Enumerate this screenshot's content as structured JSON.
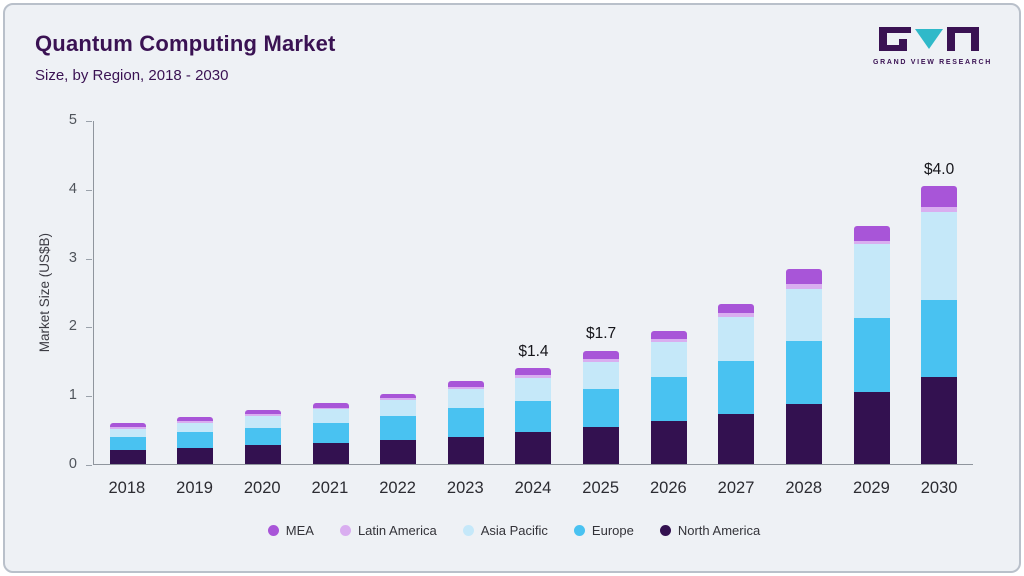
{
  "header": {
    "title": "Quantum Computing Market",
    "subtitle": "Size, by Region, 2018 - 2030",
    "logo_text": "GRAND VIEW RESEARCH"
  },
  "colors": {
    "title": "#3a1253",
    "panel_background": "#eef1f5",
    "panel_border": "#b9c0ca",
    "axis": "#8f959d",
    "logo_teal": "#2fb9c9",
    "logo_purple": "#3a1253"
  },
  "chart_data": {
    "type": "bar",
    "stacked": true,
    "title": "Quantum Computing Market Size, by Region, 2018 - 2030",
    "xlabel": "",
    "ylabel": "Market Size (US$B)",
    "ylim": [
      0,
      5
    ],
    "yticks": [
      0,
      1,
      2,
      3,
      4,
      5
    ],
    "grid": false,
    "legend_position": "bottom",
    "categories": [
      "2018",
      "2019",
      "2020",
      "2021",
      "2022",
      "2023",
      "2024",
      "2025",
      "2026",
      "2027",
      "2028",
      "2029",
      "2030"
    ],
    "series": [
      {
        "name": "North America",
        "color": "#331150",
        "values": [
          0.2,
          0.24,
          0.27,
          0.3,
          0.35,
          0.4,
          0.46,
          0.54,
          0.63,
          0.73,
          0.87,
          1.05,
          1.27
        ]
      },
      {
        "name": "Europe",
        "color": "#49c2f1",
        "values": [
          0.19,
          0.22,
          0.26,
          0.3,
          0.35,
          0.42,
          0.46,
          0.55,
          0.64,
          0.77,
          0.92,
          1.08,
          1.11
        ]
      },
      {
        "name": "Asia Pacific",
        "color": "#c5e8f9",
        "values": [
          0.12,
          0.14,
          0.17,
          0.2,
          0.23,
          0.27,
          0.33,
          0.39,
          0.51,
          0.64,
          0.76,
          1.07,
          1.28
        ]
      },
      {
        "name": "Latin America",
        "color": "#d9aef0",
        "values": [
          0.02,
          0.02,
          0.02,
          0.02,
          0.03,
          0.03,
          0.04,
          0.05,
          0.04,
          0.05,
          0.06,
          0.05,
          0.08
        ]
      },
      {
        "name": "MEA",
        "color": "#a855d8",
        "values": [
          0.06,
          0.07,
          0.07,
          0.07,
          0.06,
          0.08,
          0.11,
          0.12,
          0.12,
          0.14,
          0.23,
          0.21,
          0.3
        ]
      }
    ],
    "bar_labels": {
      "2024": "$1.4",
      "2025": "$1.7",
      "2030": "$4.0"
    }
  }
}
